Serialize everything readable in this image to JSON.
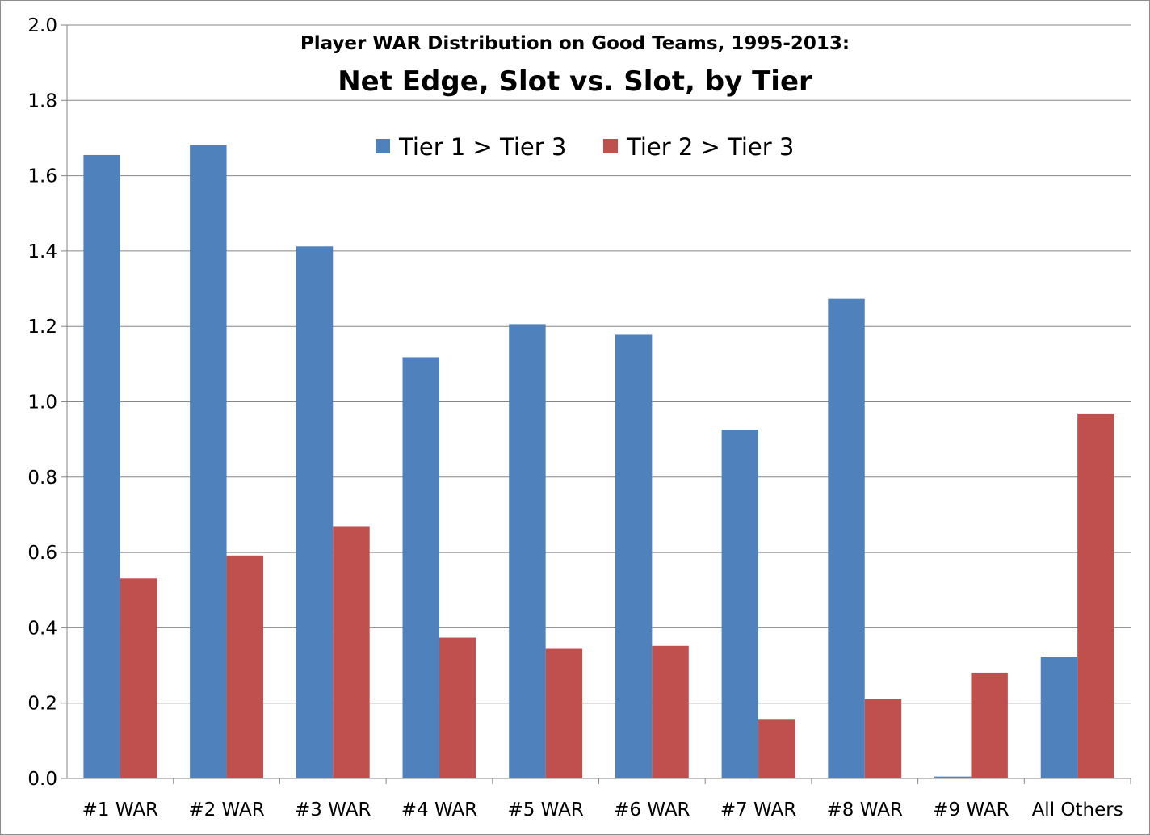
{
  "chart_data": {
    "type": "bar",
    "title": "Player WAR Distribution on Good Teams, 1995-2013:",
    "subtitle": "Net Edge, Slot vs. Slot, by Tier",
    "xlabel": "",
    "ylabel": "",
    "ylim": [
      0,
      2.0
    ],
    "yticks": [
      "0.0",
      "0.2",
      "0.4",
      "0.6",
      "0.8",
      "1.0",
      "1.2",
      "1.4",
      "1.6",
      "1.8",
      "2.0"
    ],
    "grid": true,
    "legend_position": "top-center",
    "categories": [
      "#1 WAR",
      "#2 WAR",
      "#3 WAR",
      "#4 WAR",
      "#5 WAR",
      "#6 WAR",
      "#7 WAR",
      "#8 WAR",
      "#9 WAR",
      "All Others"
    ],
    "series": [
      {
        "name": "Tier 1 > Tier 3",
        "color": "#4f81bd",
        "values": [
          1.655,
          1.682,
          1.412,
          1.118,
          1.206,
          1.178,
          0.926,
          1.274,
          0.005,
          0.323
        ]
      },
      {
        "name": "Tier 2 > Tier 3",
        "color": "#c0504d",
        "values": [
          0.531,
          0.592,
          0.67,
          0.374,
          0.344,
          0.352,
          0.158,
          0.211,
          0.281,
          0.967
        ]
      }
    ]
  }
}
